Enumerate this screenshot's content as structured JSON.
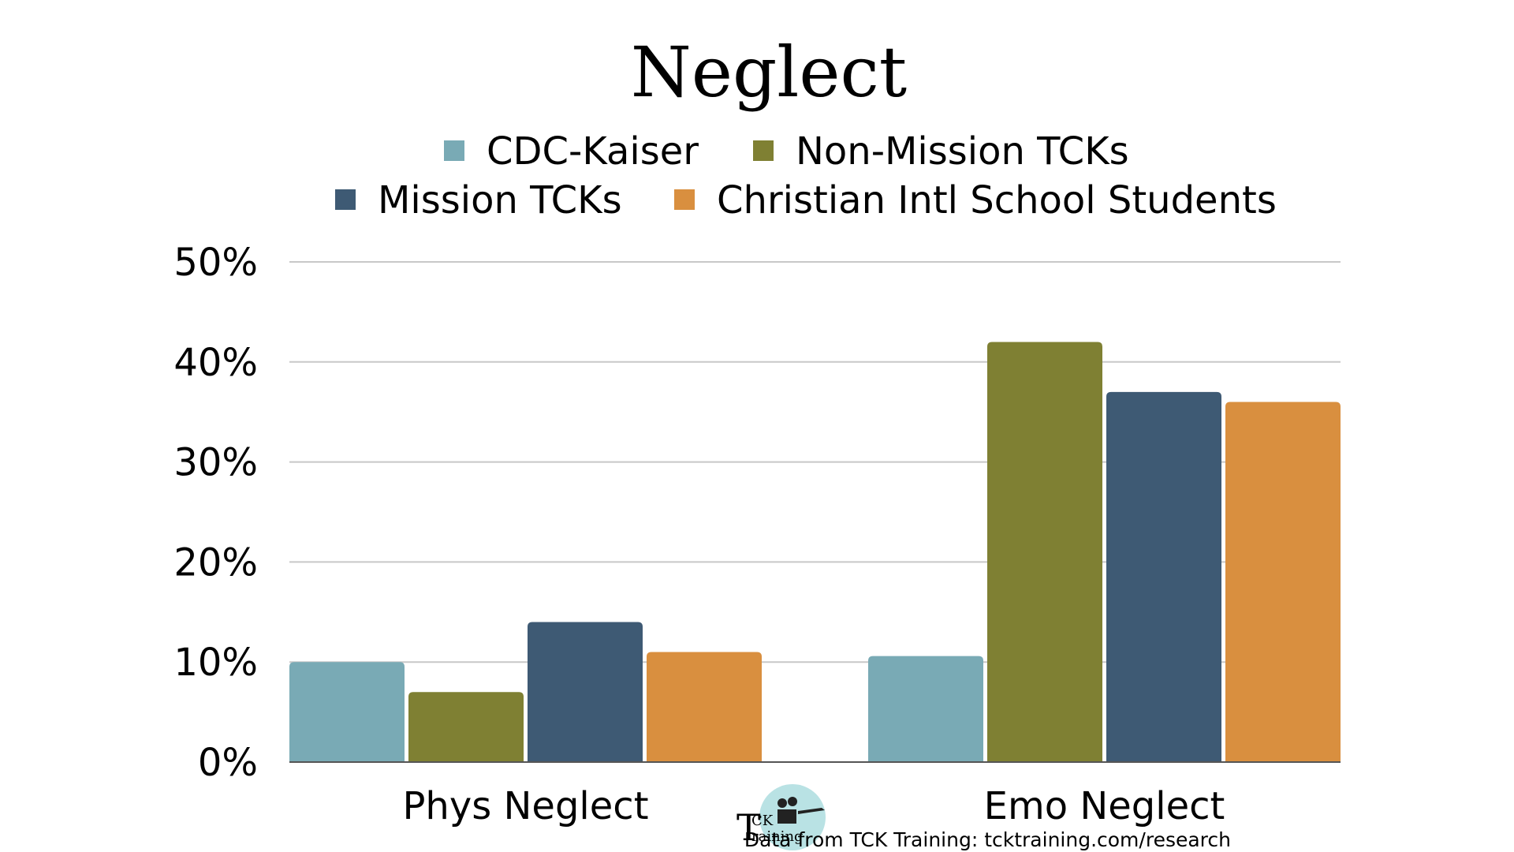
{
  "chart_data": {
    "type": "bar",
    "title": "Neglect",
    "categories": [
      "Phys Neglect",
      "Emo Neglect"
    ],
    "series": [
      {
        "name": "CDC-Kaiser",
        "color": "#79aab5",
        "values": [
          10,
          10.6
        ]
      },
      {
        "name": "Non-Mission TCKs",
        "color": "#7f8033",
        "values": [
          7,
          42
        ]
      },
      {
        "name": "Mission TCKs",
        "color": "#3e5a74",
        "values": [
          14,
          37
        ]
      },
      {
        "name": "Christian Intl School Students",
        "color": "#d98f3f",
        "values": [
          11,
          36
        ]
      }
    ],
    "ylim": [
      0,
      50
    ],
    "yticks": [
      0,
      10,
      20,
      30,
      40,
      50
    ],
    "ytick_labels": [
      "0%",
      "10%",
      "20%",
      "30%",
      "40%",
      "50%"
    ],
    "legend_position": "top",
    "grid": true
  },
  "footer": {
    "credit": "Data from TCK Training: tcktraining.com/research",
    "logo": {
      "name": "tck-training-logo",
      "text_top": "CK",
      "text_bottom": "raining",
      "initial": "T"
    }
  }
}
